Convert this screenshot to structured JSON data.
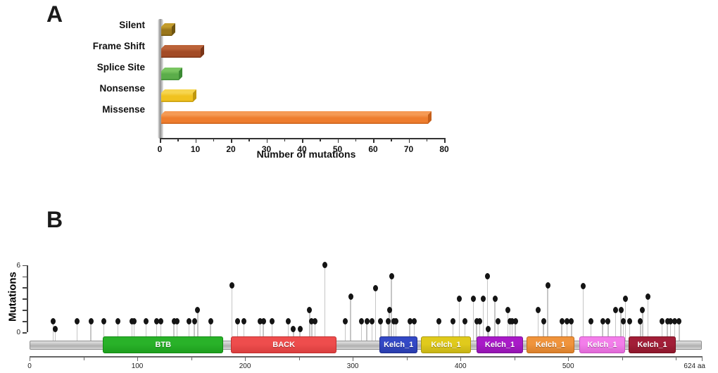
{
  "figure": {
    "panel_a_label": "A",
    "panel_b_label": "B"
  },
  "chart_data": [
    {
      "type": "bar",
      "orientation": "horizontal",
      "title": "",
      "categories": [
        "Silent",
        "Frame Shift",
        "Splice Site",
        "Nonsense",
        "Missense"
      ],
      "values": [
        3,
        11,
        5,
        9,
        75
      ],
      "xlabel": "Number of mutations",
      "xlim": [
        0,
        80
      ],
      "xticks": [
        0,
        10,
        20,
        30,
        40,
        50,
        60,
        70,
        80
      ],
      "minor_tick_step": 5,
      "bar_colors": [
        {
          "front": "#9a761b",
          "top": "#c39c2c",
          "side": "#6f5410"
        },
        {
          "front": "#a34b26",
          "top": "#bb6238",
          "side": "#7a3518"
        },
        {
          "front": "#5bad4a",
          "top": "#79c561",
          "side": "#3c8a34"
        },
        {
          "front": "#f0c21f",
          "top": "#f6d54e",
          "side": "#c0980f"
        },
        {
          "front": "#ee7d2e",
          "top": "#f59a55",
          "side": "#c55f1a"
        }
      ]
    },
    {
      "type": "lollipop",
      "ylabel": "Mutations",
      "ylim": [
        0,
        6
      ],
      "ytick_labels": [
        0,
        6
      ],
      "xlim": [
        0,
        624
      ],
      "xticks": [
        0,
        100,
        200,
        300,
        400,
        500
      ],
      "minor_xticks": [
        50,
        150,
        250,
        350,
        450,
        550,
        600
      ],
      "x_end_label": "624 aa",
      "protein_length": 624,
      "dot_color": "#141414",
      "stem_color": "#c6c6c6",
      "domains": [
        {
          "name": "BTB",
          "start": 68,
          "end": 180,
          "fill": "#29b229",
          "border": "#128a12"
        },
        {
          "name": "BACK",
          "start": 187,
          "end": 285,
          "fill": "#ee4d4d",
          "border": "#c22f2f"
        },
        {
          "name": "Kelch_1",
          "start": 325,
          "end": 360,
          "fill": "#3349c6",
          "border": "#1f2e8f"
        },
        {
          "name": "Kelch_1",
          "start": 363,
          "end": 410,
          "fill": "#e0ca1c",
          "border": "#ab9a0e"
        },
        {
          "name": "Kelch_1",
          "start": 415,
          "end": 458,
          "fill": "#a91ac8",
          "border": "#7c0f96"
        },
        {
          "name": "Kelch_1",
          "start": 461,
          "end": 506,
          "fill": "#f0943c",
          "border": "#c06a1a"
        },
        {
          "name": "Kelch_1",
          "start": 510,
          "end": 553,
          "fill": "#f37eea",
          "border": "#c954c0"
        },
        {
          "name": "Kelch_1",
          "start": 556,
          "end": 600,
          "fill": "#a21e38",
          "border": "#77101f"
        }
      ],
      "mutations": [
        [
          22,
          1
        ],
        [
          24,
          0.3
        ],
        [
          44,
          1
        ],
        [
          57,
          1
        ],
        [
          69,
          1
        ],
        [
          82,
          1
        ],
        [
          95,
          1
        ],
        [
          97,
          1
        ],
        [
          108,
          1
        ],
        [
          118,
          1
        ],
        [
          122,
          1
        ],
        [
          134,
          1
        ],
        [
          137,
          1
        ],
        [
          148,
          1
        ],
        [
          153,
          1
        ],
        [
          156,
          2
        ],
        [
          168,
          1
        ],
        [
          188,
          4.2
        ],
        [
          193,
          1
        ],
        [
          199,
          1
        ],
        [
          214,
          1
        ],
        [
          217,
          1
        ],
        [
          225,
          1
        ],
        [
          240,
          1
        ],
        [
          245,
          0.3
        ],
        [
          251,
          0.3
        ],
        [
          260,
          2
        ],
        [
          262,
          1
        ],
        [
          265,
          1
        ],
        [
          274,
          6
        ],
        [
          293,
          1
        ],
        [
          298,
          3.2
        ],
        [
          308,
          1
        ],
        [
          313,
          1
        ],
        [
          318,
          1
        ],
        [
          321,
          3.9
        ],
        [
          326,
          1
        ],
        [
          333,
          1
        ],
        [
          334,
          2
        ],
        [
          336,
          5
        ],
        [
          338,
          1
        ],
        [
          340,
          1
        ],
        [
          353,
          1
        ],
        [
          357,
          1
        ],
        [
          380,
          1
        ],
        [
          393,
          1
        ],
        [
          399,
          3
        ],
        [
          404,
          1
        ],
        [
          412,
          3
        ],
        [
          415,
          1
        ],
        [
          418,
          1
        ],
        [
          421,
          3
        ],
        [
          425,
          5
        ],
        [
          426,
          0.3
        ],
        [
          432,
          3
        ],
        [
          435,
          1
        ],
        [
          444,
          2
        ],
        [
          446,
          1
        ],
        [
          448,
          1
        ],
        [
          451,
          1
        ],
        [
          472,
          2
        ],
        [
          477,
          1
        ],
        [
          481,
          4.2
        ],
        [
          494,
          1
        ],
        [
          499,
          1
        ],
        [
          503,
          1
        ],
        [
          514,
          4.1
        ],
        [
          521,
          1
        ],
        [
          532,
          1
        ],
        [
          537,
          1
        ],
        [
          544,
          2
        ],
        [
          549,
          2
        ],
        [
          551,
          1
        ],
        [
          553,
          3
        ],
        [
          557,
          1
        ],
        [
          567,
          1
        ],
        [
          569,
          2
        ],
        [
          574,
          3.2
        ],
        [
          587,
          1
        ],
        [
          592,
          1
        ],
        [
          595,
          1
        ],
        [
          599,
          1
        ],
        [
          603,
          1
        ]
      ]
    }
  ]
}
